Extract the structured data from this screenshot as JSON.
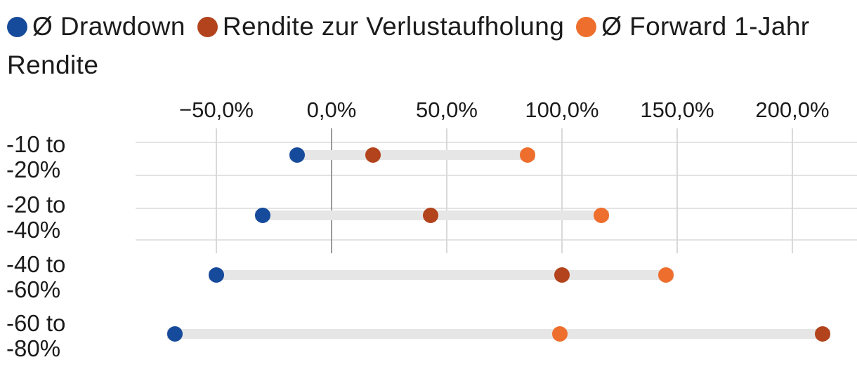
{
  "legend": {
    "items": [
      {
        "label": "Ø Drawdown",
        "color": "#164a9b",
        "series": "drawdown"
      },
      {
        "label": "Rendite zur Verlustaufholung",
        "color": "#b2431c",
        "series": "recovery"
      },
      {
        "label": "Ø Forward 1-Jahr",
        "label_wrap": "Rendite",
        "color": "#ee6e2d",
        "series": "forward"
      }
    ]
  },
  "chart_data": {
    "type": "scatter",
    "variant": "dumbbell-range",
    "orientation": "horizontal",
    "title": "",
    "xlabel": "",
    "ylabel": "",
    "categories": [
      "-10 to -20%",
      "-20 to -40%",
      "-40 to -60%",
      "-60 to -80%"
    ],
    "series": [
      {
        "key": "drawdown",
        "name": "Ø Drawdown",
        "color": "#164a9b",
        "values": [
          -15,
          -30,
          -50,
          -68
        ]
      },
      {
        "key": "recovery",
        "name": "Rendite zur Verlustaufholung",
        "color": "#b2431c",
        "values": [
          18,
          43,
          100,
          213
        ]
      },
      {
        "key": "forward",
        "name": "Ø Forward 1-Jahr Rendite",
        "color": "#ee6e2d",
        "values": [
          85,
          117,
          145,
          99
        ]
      }
    ],
    "x_axis": {
      "tick_labels": [
        "−50,0%",
        "0,0%",
        "50,0%",
        "100,0%",
        "150,0%",
        "200,0%"
      ],
      "tick_values": [
        -50,
        0,
        50,
        100,
        150,
        200
      ],
      "range": [
        -86,
        228
      ],
      "unit": "%",
      "zero_line": true
    },
    "legend_position": "top",
    "grid": "partial",
    "connector_color": "#e6e6e6"
  },
  "colors": {
    "background": "#ffffff",
    "text": "#1b1b1b",
    "gridline": "#d9d9d9",
    "zero_line": "#9a9a9a",
    "range_bar": "#e6e6e6"
  }
}
